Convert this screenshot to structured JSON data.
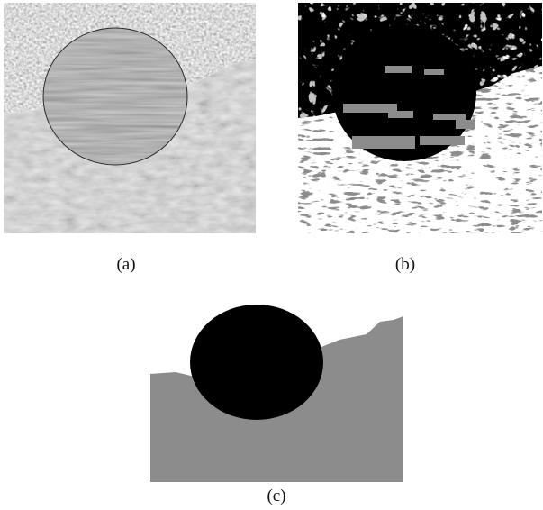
{
  "figure": {
    "captions": {
      "a": "(a)",
      "b": "(b)",
      "c": "(c)"
    },
    "panels": {
      "a": {
        "kind": "texture-mosaic-photo",
        "regions": [
          "top-texture-light",
          "circle-wood-texture",
          "bottom-leather-texture"
        ]
      },
      "b": {
        "kind": "noisy-segmentation-map",
        "region_colors": [
          "#ffffff",
          "#000000",
          "#8c8c8c"
        ]
      },
      "c": {
        "kind": "clean-segmentation-map",
        "region_colors": [
          "#ffffff",
          "#000000",
          "#8c8c8c"
        ]
      }
    },
    "colors": {
      "black_region": "#000000",
      "gray_region": "#8c8c8c",
      "white_region": "#ffffff"
    }
  }
}
